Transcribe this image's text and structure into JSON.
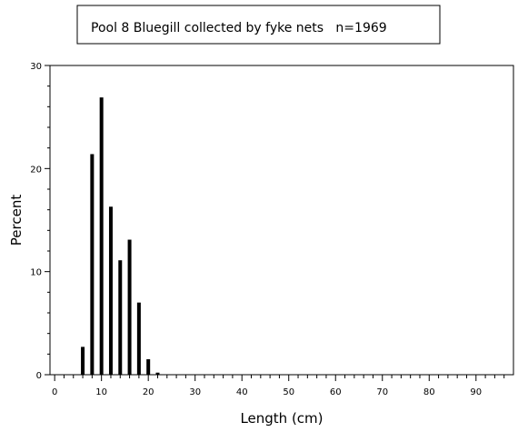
{
  "chart_data": {
    "type": "bar",
    "title": "Pool 8 Bluegill collected by fyke nets   n=1969",
    "xlabel": "Length (cm)",
    "ylabel": "Percent",
    "xlim": [
      -1,
      98
    ],
    "ylim": [
      0,
      30
    ],
    "xticks": [
      0,
      10,
      20,
      30,
      40,
      50,
      60,
      70,
      80,
      90
    ],
    "yticks": [
      0,
      10,
      20,
      30
    ],
    "x": [
      6,
      8,
      10,
      12,
      14,
      16,
      18,
      20,
      22
    ],
    "values": [
      2.7,
      21.4,
      26.9,
      16.3,
      11.1,
      13.1,
      7.0,
      1.5,
      0.2
    ],
    "bar_color": "#000000",
    "grid": false,
    "legend": "none"
  }
}
